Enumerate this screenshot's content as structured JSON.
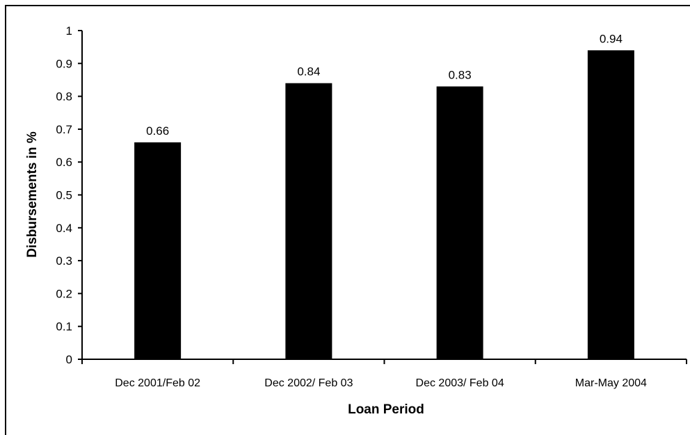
{
  "chart_data": {
    "type": "bar",
    "title": "",
    "xlabel": "Loan Period",
    "ylabel": "Disbursements in %",
    "categories": [
      "Dec 2001/Feb 02",
      "Dec 2002/ Feb 03",
      "Dec 2003/ Feb 04",
      "Mar-May 2004"
    ],
    "values": [
      0.66,
      0.84,
      0.83,
      0.94
    ],
    "data_labels": [
      "0.66",
      "0.84",
      "0.83",
      "0.94"
    ],
    "ylim": [
      0,
      1
    ],
    "yticks": [
      "0",
      "0.1",
      "0.2",
      "0.3",
      "0.4",
      "0.5",
      "0.6",
      "0.7",
      "0.8",
      "0.9",
      "1"
    ],
    "grid": false,
    "legend": "none",
    "bar_color": "#000000"
  }
}
